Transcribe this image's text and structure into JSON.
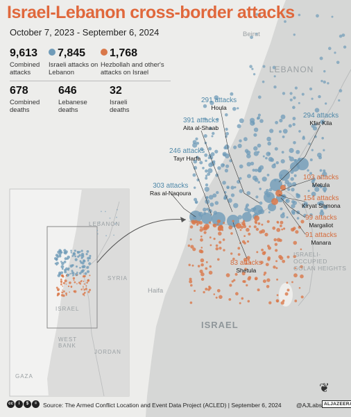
{
  "title": "Israel-Lebanon cross-border attacks",
  "subtitle": "October 7, 2023 - September 6, 2024",
  "stats": {
    "combined_attacks": {
      "value": "9,613",
      "label": "Combined attacks"
    },
    "israeli_attacks": {
      "value": "7,845",
      "label": "Israeli attacks on Lebanon",
      "color": "#6f9bb8"
    },
    "hezbollah_attacks": {
      "value": "1,768",
      "label": "Hezbollah and other's attacks on Israel",
      "color": "#d9784a"
    },
    "combined_deaths": {
      "value": "678",
      "label": "Combined deaths"
    },
    "lebanese_deaths": {
      "value": "646",
      "label": "Lebanese deaths"
    },
    "israeli_deaths": {
      "value": "32",
      "label": "Israeli deaths"
    }
  },
  "map_labels": {
    "beirut": "Beirut",
    "lebanon": "LEBANON",
    "golan": "ISRAELI-OCCUPIED GOLAN HEIGHTS",
    "haifa": "Haifa",
    "israel": "ISRAEL"
  },
  "inset_labels": {
    "lebanon": "LEBANON",
    "syria": "SYRIA",
    "israel": "ISRAEL",
    "west_bank": "WEST BANK",
    "jordan": "JORDAN",
    "gaza": "GAZA"
  },
  "callouts": {
    "houla": {
      "count": "291 attacks",
      "town": "Houla"
    },
    "kfar_kila": {
      "count": "294 attacks",
      "town": "Kfar Kila"
    },
    "aita_al_shaab": {
      "count": "391 attacks",
      "town": "Aita al-Shaab"
    },
    "tayr_harfa": {
      "count": "246 attacks",
      "town": "Tayr Harfa"
    },
    "ras_al_naqoura": {
      "count": "303 attacks",
      "town": "Ras al-Naqoura"
    },
    "metula": {
      "count": "103 attacks",
      "town": "Metula"
    },
    "kiryat_shmona": {
      "count": "154 attacks",
      "town": "Kiryat Shmona"
    },
    "margaliot": {
      "count": "99 attacks",
      "town": "Margaliot"
    },
    "manara": {
      "count": "91 attacks",
      "town": "Manara"
    },
    "shetula": {
      "count": "83 attacks",
      "town": "Shetula"
    }
  },
  "colors": {
    "israeli": "#6f9bb8",
    "hezbollah": "#d9784a",
    "accent": "#e0683c",
    "land": "#d6d7d6",
    "sea": "#ededeb"
  },
  "footer": {
    "source": "Source: The Armed Conflict Location and Event Data Project (ACLED) | September 6, 2024",
    "handle": "@AJLabs",
    "logo": "ALJAZEERA"
  }
}
